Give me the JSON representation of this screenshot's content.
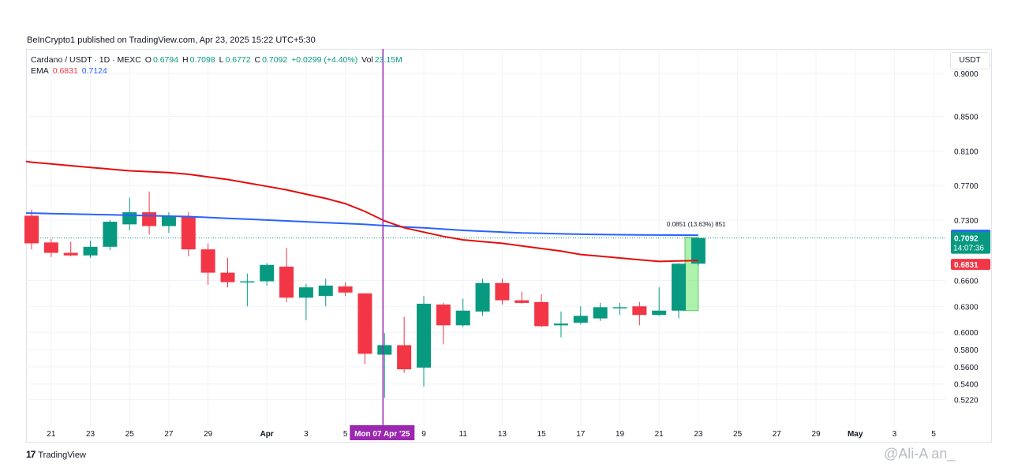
{
  "header": {
    "published_line": "BeInCrypto1 published on TradingView.com, Apr 23, 2025 15:22 UTC+5:30"
  },
  "legend": {
    "symbol_line": "Cardano / USDT · 1D · MEXC",
    "open_label": "O",
    "open": "0.6794",
    "high_label": "H",
    "high": "0.7098",
    "low_label": "L",
    "low": "0.6772",
    "close_label": "C",
    "close": "0.7092",
    "change": "+0.0299 (+4.40%)",
    "vol_label": "Vol",
    "vol": "23.15M",
    "ema_label": "EMA",
    "ema1": "0.6831",
    "ema2": "0.7124"
  },
  "currency_button": "USDT",
  "footer": {
    "logo_mark": "17",
    "logo_text": "TradingView",
    "watermark": "@Ali-A  an_"
  },
  "colors": {
    "up": "#089981",
    "down": "#f23645",
    "ema_red": "#e50d0d",
    "ema_blue": "#2962ff",
    "crosshair": "#9c27b0",
    "projection": "#90ee90"
  },
  "chart_data": {
    "type": "candlestick",
    "title": "Cardano / USDT · 1D · MEXC",
    "ylim": [
      0.505,
      0.91
    ],
    "y_ticks": [
      "0.9000",
      "0.8500",
      "0.8100",
      "0.7700",
      "0.7300",
      "0.6600",
      "0.6300",
      "0.6000",
      "0.5800",
      "0.5600",
      "0.5400",
      "0.5220"
    ],
    "x_ticks": [
      {
        "label": "21",
        "i": 1
      },
      {
        "label": "23",
        "i": 3
      },
      {
        "label": "25",
        "i": 5
      },
      {
        "label": "27",
        "i": 7
      },
      {
        "label": "29",
        "i": 9
      },
      {
        "label": "Apr",
        "i": 12
      },
      {
        "label": "3",
        "i": 14
      },
      {
        "label": "5",
        "i": 16
      },
      {
        "label": "9",
        "i": 20
      },
      {
        "label": "11",
        "i": 22
      },
      {
        "label": "13",
        "i": 24
      },
      {
        "label": "15",
        "i": 26
      },
      {
        "label": "17",
        "i": 28
      },
      {
        "label": "19",
        "i": 30
      },
      {
        "label": "21",
        "i": 32
      },
      {
        "label": "23",
        "i": 34
      },
      {
        "label": "25",
        "i": 36
      },
      {
        "label": "27",
        "i": 38
      },
      {
        "label": "29",
        "i": 40
      },
      {
        "label": "May",
        "i": 42
      },
      {
        "label": "3",
        "i": 44
      },
      {
        "label": "5",
        "i": 46
      }
    ],
    "candles": [
      {
        "o": 0.735,
        "h": 0.742,
        "l": 0.696,
        "c": 0.703
      },
      {
        "o": 0.704,
        "h": 0.708,
        "l": 0.687,
        "c": 0.692
      },
      {
        "o": 0.692,
        "h": 0.705,
        "l": 0.688,
        "c": 0.689
      },
      {
        "o": 0.689,
        "h": 0.706,
        "l": 0.686,
        "c": 0.699
      },
      {
        "o": 0.699,
        "h": 0.73,
        "l": 0.695,
        "c": 0.728
      },
      {
        "o": 0.725,
        "h": 0.756,
        "l": 0.718,
        "c": 0.739
      },
      {
        "o": 0.739,
        "h": 0.763,
        "l": 0.713,
        "c": 0.723
      },
      {
        "o": 0.723,
        "h": 0.739,
        "l": 0.715,
        "c": 0.734
      },
      {
        "o": 0.734,
        "h": 0.739,
        "l": 0.688,
        "c": 0.696
      },
      {
        "o": 0.696,
        "h": 0.703,
        "l": 0.655,
        "c": 0.669
      },
      {
        "o": 0.669,
        "h": 0.686,
        "l": 0.652,
        "c": 0.658
      },
      {
        "o": 0.659,
        "h": 0.668,
        "l": 0.63,
        "c": 0.659
      },
      {
        "o": 0.659,
        "h": 0.68,
        "l": 0.654,
        "c": 0.678
      },
      {
        "o": 0.676,
        "h": 0.698,
        "l": 0.635,
        "c": 0.64
      },
      {
        "o": 0.64,
        "h": 0.656,
        "l": 0.614,
        "c": 0.652
      },
      {
        "o": 0.642,
        "h": 0.662,
        "l": 0.63,
        "c": 0.654
      },
      {
        "o": 0.653,
        "h": 0.658,
        "l": 0.642,
        "c": 0.646
      },
      {
        "o": 0.645,
        "h": 0.645,
        "l": 0.563,
        "c": 0.575
      },
      {
        "o": 0.574,
        "h": 0.599,
        "l": 0.524,
        "c": 0.585
      },
      {
        "o": 0.585,
        "h": 0.618,
        "l": 0.553,
        "c": 0.557
      },
      {
        "o": 0.559,
        "h": 0.642,
        "l": 0.537,
        "c": 0.633
      },
      {
        "o": 0.632,
        "h": 0.634,
        "l": 0.586,
        "c": 0.608
      },
      {
        "o": 0.608,
        "h": 0.639,
        "l": 0.606,
        "c": 0.625
      },
      {
        "o": 0.624,
        "h": 0.662,
        "l": 0.619,
        "c": 0.657
      },
      {
        "o": 0.657,
        "h": 0.662,
        "l": 0.632,
        "c": 0.637
      },
      {
        "o": 0.637,
        "h": 0.647,
        "l": 0.633,
        "c": 0.634
      },
      {
        "o": 0.635,
        "h": 0.644,
        "l": 0.606,
        "c": 0.607
      },
      {
        "o": 0.608,
        "h": 0.624,
        "l": 0.594,
        "c": 0.61
      },
      {
        "o": 0.611,
        "h": 0.63,
        "l": 0.609,
        "c": 0.619
      },
      {
        "o": 0.616,
        "h": 0.634,
        "l": 0.613,
        "c": 0.629
      },
      {
        "o": 0.629,
        "h": 0.634,
        "l": 0.62,
        "c": 0.629
      },
      {
        "o": 0.63,
        "h": 0.635,
        "l": 0.608,
        "c": 0.62
      },
      {
        "o": 0.62,
        "h": 0.652,
        "l": 0.619,
        "c": 0.625
      },
      {
        "o": 0.625,
        "h": 0.68,
        "l": 0.616,
        "c": 0.6794
      },
      {
        "o": 0.6794,
        "h": 0.7098,
        "l": 0.6772,
        "c": 0.7092
      }
    ],
    "ema_red": [
      0.797,
      0.795,
      0.793,
      0.791,
      0.789,
      0.787,
      0.786,
      0.785,
      0.783,
      0.78,
      0.777,
      0.773,
      0.769,
      0.765,
      0.76,
      0.755,
      0.749,
      0.74,
      0.729,
      0.721,
      0.716,
      0.711,
      0.707,
      0.705,
      0.703,
      0.7,
      0.697,
      0.694,
      0.69,
      0.688,
      0.686,
      0.684,
      0.682,
      0.6825,
      0.6831
    ],
    "ema_blue": [
      0.738,
      0.7375,
      0.737,
      0.7365,
      0.736,
      0.7355,
      0.735,
      0.7345,
      0.734,
      0.733,
      0.732,
      0.731,
      0.73,
      0.729,
      0.728,
      0.727,
      0.726,
      0.725,
      0.7235,
      0.722,
      0.721,
      0.7195,
      0.718,
      0.717,
      0.716,
      0.715,
      0.7145,
      0.714,
      0.7135,
      0.7133,
      0.713,
      0.7128,
      0.7126,
      0.7125,
      0.7124
    ],
    "price_labels": {
      "ema_blue": "0.7124",
      "close": "0.7092",
      "countdown": "14:07:36",
      "ema_red": "0.6831"
    },
    "projection_label": "0.0851 (13.63%) 851",
    "crosshair_index": 18,
    "crosshair_date": "Mon 07 Apr '25"
  }
}
